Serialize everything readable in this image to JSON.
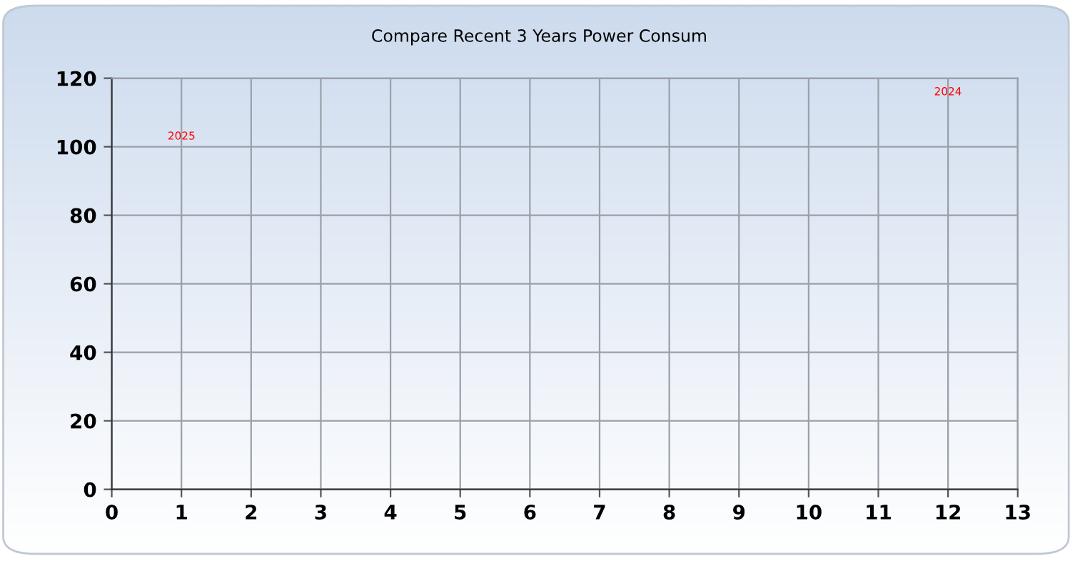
{
  "chart_data": {
    "type": "scatter",
    "title": "Compare Recent 3 Years Power Consum",
    "annotations": [
      "2025",
      "2024"
    ],
    "color": "#ff0000",
    "xlim": [
      0,
      13
    ],
    "xticks": [
      0,
      1,
      2,
      3,
      4,
      5,
      6,
      7,
      8,
      9,
      10,
      11,
      12,
      13
    ],
    "ylim": [
      0,
      120
    ],
    "yticks": [
      0,
      20,
      40,
      60,
      80,
      100,
      120
    ],
    "grid": true
  }
}
